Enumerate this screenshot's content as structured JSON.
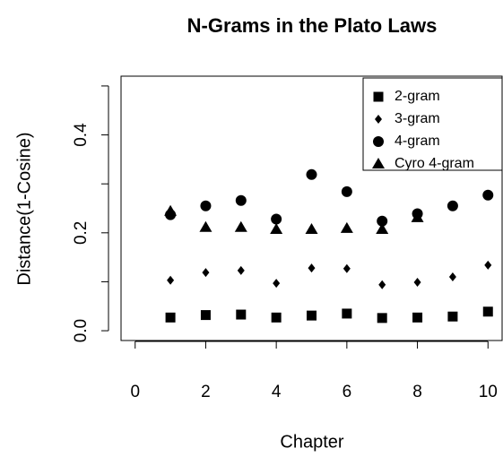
{
  "chart_data": {
    "type": "scatter",
    "title": "N-Grams in the Plato Laws",
    "x_label": "Chapter",
    "y_label": "Distance(1-Cosine)",
    "x": [
      1,
      2,
      3,
      4,
      5,
      6,
      7,
      8,
      9,
      10
    ],
    "series": [
      {
        "name": "2-gram",
        "marker": "square",
        "color": "#000000",
        "values": [
          0.027,
          0.032,
          0.033,
          0.027,
          0.031,
          0.035,
          0.026,
          0.027,
          0.029,
          0.039
        ]
      },
      {
        "name": "3-gram",
        "marker": "diamond",
        "color": "#000000",
        "values": [
          0.103,
          0.119,
          0.123,
          0.097,
          0.128,
          0.127,
          0.094,
          0.099,
          0.11,
          0.134
        ]
      },
      {
        "name": "4-gram",
        "marker": "circle",
        "color": "#000000",
        "values": [
          0.237,
          0.255,
          0.266,
          0.228,
          0.319,
          0.284,
          0.224,
          0.239,
          0.255,
          0.277
        ]
      },
      {
        "name": "Cyro 4-gram",
        "marker": "triangle",
        "color": "#000000",
        "values": [
          0.244,
          0.211,
          0.211,
          0.207,
          0.207,
          0.209,
          0.207,
          0.231,
          null,
          null
        ]
      }
    ],
    "xlim": [
      -0.4,
      10.4
    ],
    "ylim": [
      -0.02,
      0.52
    ],
    "xticks": [
      0,
      2,
      4,
      6,
      8,
      10
    ],
    "yticks": [
      {
        "value": 0,
        "label": "0.0"
      },
      0.2,
      0.4
    ],
    "yminorticks": [
      0.1,
      0.3,
      0.5
    ],
    "legend": "top-right",
    "grid": false
  }
}
